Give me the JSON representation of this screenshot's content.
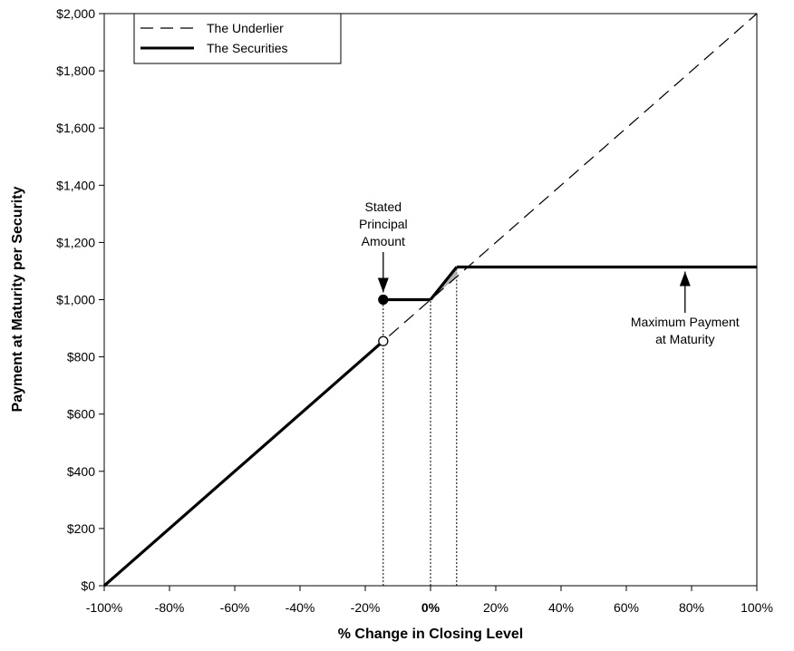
{
  "chart_data": {
    "type": "line",
    "title": "",
    "xlabel": "% Change in Closing Level",
    "ylabel": "Payment at Maturity per Security",
    "xlim": [
      -100,
      100
    ],
    "ylim": [
      0,
      2000
    ],
    "x_ticks": [
      -100,
      -80,
      -60,
      -40,
      -20,
      0,
      20,
      40,
      60,
      80,
      100
    ],
    "x_tick_labels": [
      "-100%",
      "-80%",
      "-60%",
      "-40%",
      "-20%",
      "0%",
      "20%",
      "40%",
      "60%",
      "80%",
      "100%"
    ],
    "y_ticks": [
      0,
      200,
      400,
      600,
      800,
      1000,
      1200,
      1400,
      1600,
      1800,
      2000
    ],
    "y_tick_labels": [
      "$0",
      "$200",
      "$400",
      "$600",
      "$800",
      "$1,000",
      "$1,200",
      "$1,400",
      "$1,600",
      "$1,800",
      "$2,000"
    ],
    "grid": false,
    "legend_position": "top-left",
    "series": [
      {
        "name": "The Underlier",
        "style": "dashed",
        "x": [
          -100,
          100
        ],
        "y": [
          0,
          2000
        ]
      },
      {
        "name": "The Securities",
        "style": "solid-bold",
        "segments": [
          {
            "x": [
              -100,
              -14.5
            ],
            "y": [
              0,
              855
            ]
          },
          {
            "x": [
              -14.5,
              0
            ],
            "y": [
              1000,
              1000
            ]
          },
          {
            "x": [
              0,
              8
            ],
            "y": [
              1000,
              1114
            ]
          },
          {
            "x": [
              8,
              100
            ],
            "y": [
              1114,
              1114
            ]
          }
        ]
      }
    ],
    "markers": [
      {
        "x": -14.5,
        "y": 1000,
        "fill": "filled"
      },
      {
        "x": -14.5,
        "y": 855,
        "fill": "open"
      }
    ],
    "reference_lines": [
      -14.5,
      0,
      8
    ],
    "shaded_region": {
      "x": [
        0,
        8,
        8
      ],
      "y": [
        1000,
        1080,
        1114
      ]
    },
    "annotations": [
      {
        "lines": [
          "Stated",
          "Principal",
          "Amount"
        ],
        "target_x": -14.5,
        "target_y": 1000,
        "arrow": "down"
      },
      {
        "lines": [
          "Maximum Payment",
          "at Maturity"
        ],
        "target_x": 78,
        "target_y": 1114,
        "arrow": "up"
      }
    ]
  }
}
